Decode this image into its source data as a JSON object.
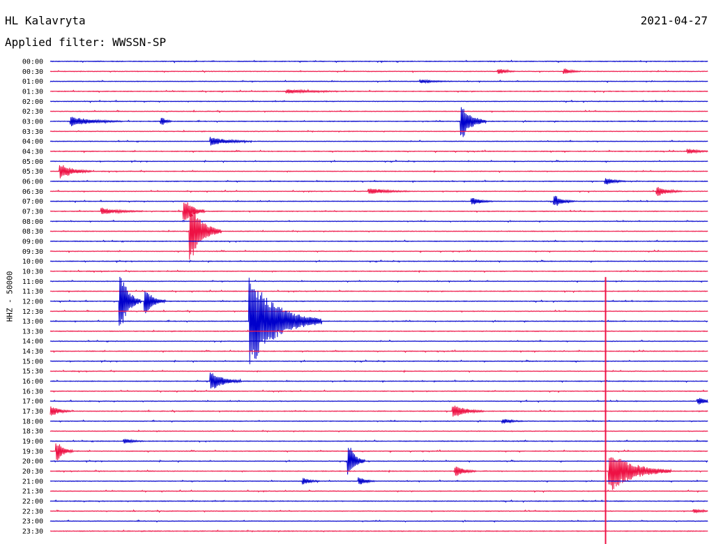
{
  "header": {
    "station": "HL Kalavryta",
    "date": "2021-04-27",
    "filter": "Applied filter: WWSSN-SP"
  },
  "chart_data": {
    "type": "line",
    "title": "",
    "ylabel": "HHZ - 50000",
    "row_labels": [
      "00:00",
      "00:30",
      "01:00",
      "01:30",
      "02:00",
      "02:30",
      "03:00",
      "03:30",
      "04:00",
      "04:30",
      "05:00",
      "05:30",
      "06:00",
      "06:30",
      "07:00",
      "07:30",
      "08:00",
      "08:30",
      "09:00",
      "09:30",
      "10:00",
      "10:30",
      "11:00",
      "11:30",
      "12:00",
      "12:30",
      "13:00",
      "13:30",
      "14:00",
      "14:30",
      "15:00",
      "15:30",
      "16:00",
      "16:30",
      "17:00",
      "17:30",
      "18:00",
      "18:30",
      "19:00",
      "19:30",
      "20:00",
      "20:30",
      "21:00",
      "21:30",
      "22:00",
      "22:30",
      "23:00",
      "23:30"
    ],
    "row_colors": [
      "#0000cc",
      "#ee1144"
    ],
    "events": [
      {
        "row": 6,
        "minute": 1.0,
        "amp": 0.45,
        "dur": 2.5
      },
      {
        "row": 6,
        "minute": 20.0,
        "amp": 1.6,
        "dur": 1.2
      },
      {
        "row": 6,
        "minute": 5.4,
        "amp": 0.35,
        "dur": 0.5
      },
      {
        "row": 8,
        "minute": 7.8,
        "amp": 0.4,
        "dur": 2.0
      },
      {
        "row": 11,
        "minute": 0.5,
        "amp": 0.7,
        "dur": 1.5
      },
      {
        "row": 13,
        "minute": 29.5,
        "amp": 0.45,
        "dur": 1.2
      },
      {
        "row": 13,
        "minute": 15.5,
        "amp": 0.3,
        "dur": 2.0
      },
      {
        "row": 14,
        "minute": 24.5,
        "amp": 0.5,
        "dur": 1.0
      },
      {
        "row": 14,
        "minute": 20.5,
        "amp": 0.35,
        "dur": 1.0
      },
      {
        "row": 15,
        "minute": 6.5,
        "amp": 1.2,
        "dur": 1.0
      },
      {
        "row": 15,
        "minute": 2.5,
        "amp": 0.3,
        "dur": 2.0
      },
      {
        "row": 17,
        "minute": 6.8,
        "amp": 2.8,
        "dur": 1.5
      },
      {
        "row": 24,
        "minute": 3.4,
        "amp": 2.6,
        "dur": 1.0
      },
      {
        "row": 24,
        "minute": 4.6,
        "amp": 1.2,
        "dur": 1.0
      },
      {
        "row": 26,
        "minute": 9.7,
        "amp": 4.5,
        "dur": 3.5
      },
      {
        "row": 32,
        "minute": 7.8,
        "amp": 0.9,
        "dur": 1.5
      },
      {
        "row": 34,
        "minute": 31.5,
        "amp": 0.3,
        "dur": 1.0
      },
      {
        "row": 35,
        "minute": 19.6,
        "amp": 0.6,
        "dur": 1.5
      },
      {
        "row": 35,
        "minute": 0.0,
        "amp": 0.5,
        "dur": 1.0
      },
      {
        "row": 36,
        "minute": 22.0,
        "amp": 0.2,
        "dur": 1.0
      },
      {
        "row": 38,
        "minute": 3.6,
        "amp": 0.2,
        "dur": 1.0
      },
      {
        "row": 39,
        "minute": 0.3,
        "amp": 0.9,
        "dur": 0.8
      },
      {
        "row": 40,
        "minute": 14.5,
        "amp": 1.4,
        "dur": 0.8
      },
      {
        "row": 41,
        "minute": 19.7,
        "amp": 0.5,
        "dur": 1.0
      },
      {
        "row": 41,
        "minute": 27.2,
        "amp": 2.0,
        "dur": 3.0
      },
      {
        "row": 42,
        "minute": 12.3,
        "amp": 0.3,
        "dur": 0.8
      },
      {
        "row": 42,
        "minute": 15.0,
        "amp": 0.35,
        "dur": 0.8
      },
      {
        "row": 45,
        "minute": 31.3,
        "amp": 0.2,
        "dur": 0.8
      },
      {
        "row": 2,
        "minute": 18.0,
        "amp": 0.15,
        "dur": 1.5
      },
      {
        "row": 3,
        "minute": 11.5,
        "amp": 0.2,
        "dur": 2.5
      },
      {
        "row": 1,
        "minute": 21.8,
        "amp": 0.25,
        "dur": 0.8
      },
      {
        "row": 1,
        "minute": 25.0,
        "amp": 0.25,
        "dur": 0.8
      },
      {
        "row": 12,
        "minute": 27.0,
        "amp": 0.3,
        "dur": 1.0
      },
      {
        "row": 9,
        "minute": 31.0,
        "amp": 0.25,
        "dur": 1.0
      }
    ],
    "long_spike": {
      "row": 22,
      "minute": 27.0,
      "end_row": 47
    }
  }
}
